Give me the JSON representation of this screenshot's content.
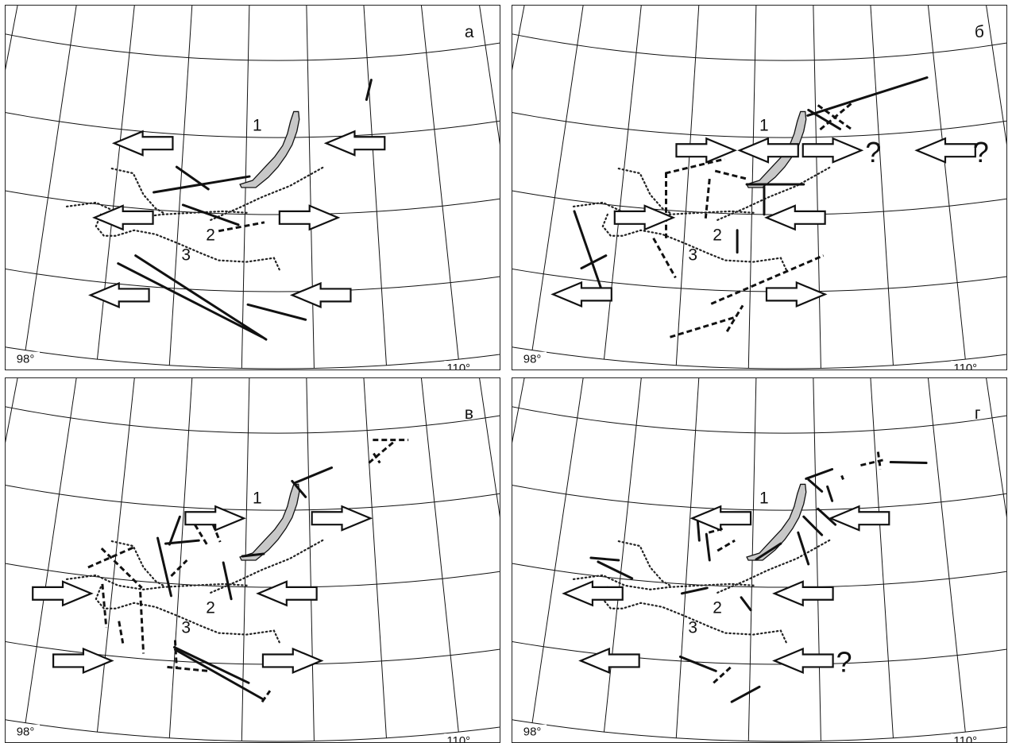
{
  "panels": [
    {
      "id": "a",
      "label": "а",
      "arrows": [
        {
          "c": [
            180,
            180
          ],
          "d": "W"
        },
        {
          "c": [
            448,
            180
          ],
          "d": "W"
        },
        {
          "c": [
            155,
            274
          ],
          "d": "W"
        },
        {
          "c": [
            389,
            274
          ],
          "d": "E"
        },
        {
          "c": [
            150,
            372
          ],
          "d": "W"
        },
        {
          "c": [
            405,
            372
          ],
          "d": "W"
        }
      ],
      "question_marks": [],
      "solid": [
        [
          [
            462,
            125
          ],
          [
            468,
            100
          ]
        ],
        [
          [
            193,
            242
          ],
          [
            314,
            222
          ]
        ],
        [
          [
            222,
            210
          ],
          [
            262,
            238
          ]
        ],
        [
          [
            230,
            258
          ],
          [
            300,
            283
          ]
        ],
        [
          [
            148,
            332
          ],
          [
            330,
            425
          ]
        ],
        [
          [
            170,
            322
          ],
          [
            335,
            428
          ]
        ],
        [
          [
            312,
            384
          ],
          [
            385,
            403
          ]
        ]
      ],
      "dashed": [
        [
          [
            275,
            291
          ],
          [
            333,
            280
          ]
        ]
      ]
    },
    {
      "id": "б",
      "label": "б",
      "arrows": [
        {
          "c": [
            888,
            189
          ],
          "d": "E"
        },
        {
          "c": [
            968,
            189
          ],
          "d": "W"
        },
        {
          "c": [
            1048,
            189
          ],
          "d": "E"
        },
        {
          "c": [
            1192,
            189
          ],
          "d": "W"
        },
        {
          "c": [
            810,
            274
          ],
          "d": "E"
        },
        {
          "c": [
            1002,
            274
          ],
          "d": "W"
        },
        {
          "c": [
            732,
            371
          ],
          "d": "W"
        },
        {
          "c": [
            1002,
            371
          ],
          "d": "E"
        }
      ],
      "question_marks": [
        {
          "pos": [
            1100,
            204
          ]
        },
        {
          "pos": [
            1236,
            204
          ]
        }
      ],
      "solid": [
        [
          [
            1017,
            145
          ],
          [
            1168,
            97
          ]
        ],
        [
          [
            1018,
            138
          ],
          [
            1058,
            162
          ]
        ],
        [
          [
            962,
            235
          ],
          [
            962,
            270
          ]
        ],
        [
          [
            928,
            290
          ],
          [
            928,
            318
          ]
        ],
        [
          [
            722,
            266
          ],
          [
            756,
            364
          ]
        ],
        [
          [
            731,
            338
          ],
          [
            762,
            322
          ]
        ],
        [
          [
            940,
            232
          ],
          [
            1012,
            232
          ]
        ]
      ],
      "dashed": [
        [
          [
            837,
            218
          ],
          [
            912,
            200
          ]
        ],
        [
          [
            838,
            217
          ],
          [
            838,
            300
          ]
        ],
        [
          [
            900,
            215
          ],
          [
            940,
            225
          ]
        ],
        [
          [
            893,
            225
          ],
          [
            888,
            275
          ]
        ],
        [
          [
            1030,
            132
          ],
          [
            1072,
            162
          ]
        ],
        [
          [
            1072,
            130
          ],
          [
            1030,
            165
          ]
        ],
        [
          [
            822,
            300
          ],
          [
            850,
            350
          ]
        ],
        [
          [
            895,
            383
          ],
          [
            1037,
            322
          ]
        ],
        [
          [
            843,
            425
          ],
          [
            925,
            400
          ]
        ],
        [
          [
            915,
            418
          ],
          [
            935,
            385
          ]
        ]
      ]
    },
    {
      "id": "в",
      "label": "в",
      "arrows": [
        {
          "c": [
            270,
            652
          ],
          "d": "E"
        },
        {
          "c": [
            430,
            652
          ],
          "d": "E"
        },
        {
          "c": [
            77,
            747
          ],
          "d": "E"
        },
        {
          "c": [
            362,
            747
          ],
          "d": "W"
        },
        {
          "c": [
            103,
            832
          ],
          "d": "E"
        },
        {
          "c": [
            368,
            832
          ],
          "d": "E"
        }
      ],
      "question_marks": [],
      "solid": [
        [
          [
            372,
            607
          ],
          [
            418,
            588
          ]
        ],
        [
          [
            368,
            605
          ],
          [
            385,
            625
          ]
        ],
        [
          [
            213,
            685
          ],
          [
            226,
            650
          ]
        ],
        [
          [
            208,
            684
          ],
          [
            250,
            680
          ]
        ],
        [
          [
            198,
            677
          ],
          [
            215,
            750
          ]
        ],
        [
          [
            281,
            708
          ],
          [
            291,
            754
          ]
        ],
        [
          [
            219,
            815
          ],
          [
            313,
            860
          ]
        ],
        [
          [
            220,
            818
          ],
          [
            330,
            880
          ]
        ],
        [
          [
            305,
            700
          ],
          [
            332,
            697
          ]
        ]
      ],
      "dashed": [
        [
          [
            465,
            582
          ],
          [
            497,
            555
          ]
        ],
        [
          [
            470,
            553
          ],
          [
            515,
            553
          ]
        ],
        [
          [
            471,
            570
          ],
          [
            479,
            582
          ]
        ],
        [
          [
            110,
            714
          ],
          [
            167,
            689
          ]
        ],
        [
          [
            127,
            690
          ],
          [
            178,
            740
          ]
        ],
        [
          [
            128,
            735
          ],
          [
            133,
            790
          ]
        ],
        [
          [
            149,
            782
          ],
          [
            154,
            810
          ]
        ],
        [
          [
            176,
            745
          ],
          [
            180,
            823
          ]
        ],
        [
          [
            215,
            725
          ],
          [
            235,
            705
          ]
        ],
        [
          [
            245,
            660
          ],
          [
            262,
            688
          ]
        ],
        [
          [
            268,
            660
          ],
          [
            277,
            682
          ]
        ],
        [
          [
            220,
            806
          ],
          [
            222,
            842
          ]
        ],
        [
          [
            210,
            840
          ],
          [
            262,
            845
          ]
        ],
        [
          [
            330,
            884
          ],
          [
            340,
            870
          ]
        ]
      ]
    },
    {
      "id": "г",
      "label": "г",
      "arrows": [
        {
          "c": [
            908,
            652
          ],
          "d": "W"
        },
        {
          "c": [
            1083,
            652
          ],
          "d": "W"
        },
        {
          "c": [
            746,
            747
          ],
          "d": "W"
        },
        {
          "c": [
            1012,
            747
          ],
          "d": "W"
        },
        {
          "c": [
            767,
            832
          ],
          "d": "W"
        },
        {
          "c": [
            1012,
            832
          ],
          "d": "W"
        }
      ],
      "question_marks": [
        {
          "pos": [
            1063,
            846
          ]
        }
      ],
      "solid": [
        [
          [
            1122,
            581
          ],
          [
            1167,
            582
          ]
        ],
        [
          [
            1015,
            602
          ],
          [
            1048,
            590
          ]
        ],
        [
          [
            1018,
            603
          ],
          [
            1035,
            618
          ]
        ],
        [
          [
            1042,
            612
          ],
          [
            1048,
            630
          ]
        ],
        [
          [
            1030,
            640
          ],
          [
            1052,
            660
          ]
        ],
        [
          [
            1012,
            650
          ],
          [
            1035,
            673
          ]
        ],
        [
          [
            1005,
            670
          ],
          [
            1018,
            710
          ]
        ],
        [
          [
            952,
            704
          ],
          [
            983,
            684
          ]
        ],
        [
          [
            743,
            702
          ],
          [
            778,
            705
          ]
        ],
        [
          [
            752,
            707
          ],
          [
            795,
            728
          ]
        ],
        [
          [
            878,
            655
          ],
          [
            880,
            680
          ]
        ],
        [
          [
            889,
            672
          ],
          [
            893,
            705
          ]
        ],
        [
          [
            858,
            747
          ],
          [
            890,
            740
          ]
        ],
        [
          [
            933,
            752
          ],
          [
            945,
            768
          ]
        ],
        [
          [
            856,
            827
          ],
          [
            901,
            845
          ]
        ],
        [
          [
            921,
            884
          ],
          [
            956,
            865
          ]
        ]
      ],
      "dashed": [
        [
          [
            1084,
            585
          ],
          [
            1114,
            578
          ]
        ],
        [
          [
            1106,
            568
          ],
          [
            1109,
            590
          ]
        ],
        [
          [
            1060,
            598
          ],
          [
            1062,
            603
          ]
        ],
        [
          [
            892,
            670
          ],
          [
            910,
            665
          ]
        ],
        [
          [
            903,
            693
          ],
          [
            925,
            680
          ]
        ],
        [
          [
            898,
            860
          ],
          [
            920,
            840
          ]
        ]
      ]
    }
  ]
}
